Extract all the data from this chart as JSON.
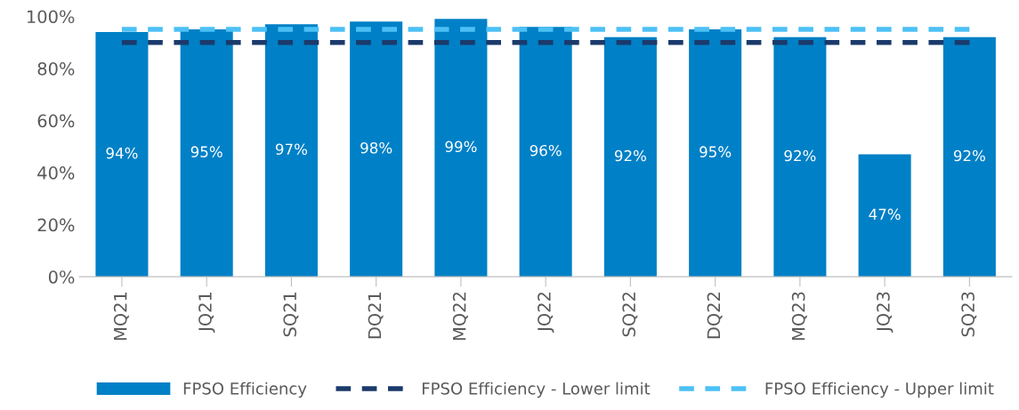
{
  "chart_data": {
    "type": "bar",
    "categories": [
      "MQ21",
      "JQ21",
      "SQ21",
      "DQ21",
      "MQ22",
      "JQ22",
      "SQ22",
      "DQ22",
      "MQ23",
      "JQ23",
      "SQ23"
    ],
    "series": [
      {
        "name": "FPSO Efficiency",
        "color": "#0080c6",
        "values": [
          94,
          95,
          97,
          98,
          99,
          96,
          92,
          95,
          92,
          47,
          92
        ],
        "value_labels": [
          "94%",
          "95%",
          "97%",
          "98%",
          "99%",
          "96%",
          "92%",
          "95%",
          "92%",
          "47%",
          "92%"
        ]
      },
      {
        "name": "FPSO Efficiency - Lower limit",
        "type": "line",
        "color": "#1b3a6b",
        "line_style": "dashed",
        "values": [
          90,
          90,
          90,
          90,
          90,
          90,
          90,
          90,
          90,
          90,
          90
        ]
      },
      {
        "name": "FPSO Efficiency - Upper limit",
        "type": "line",
        "color": "#4cc0f5",
        "line_style": "dashed",
        "values": [
          95,
          95,
          95,
          95,
          95,
          95,
          95,
          95,
          95,
          95,
          95
        ]
      }
    ],
    "ylim": [
      0,
      100
    ],
    "yticks": [
      {
        "value": 0,
        "label": "0%"
      },
      {
        "value": 20,
        "label": "20%"
      },
      {
        "value": 40,
        "label": "40%"
      },
      {
        "value": 60,
        "label": "60%"
      },
      {
        "value": 80,
        "label": "80%"
      },
      {
        "value": 100,
        "label": "100%"
      }
    ],
    "grid": false,
    "legend": "bottom"
  }
}
